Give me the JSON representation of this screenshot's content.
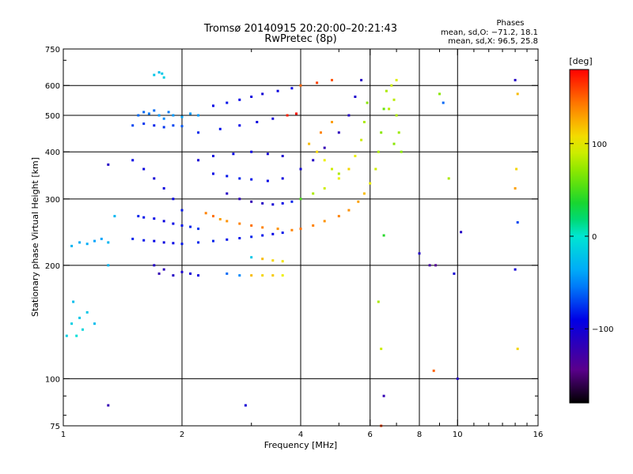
{
  "chart_data": {
    "type": "scatter",
    "title": "Tromsø 20140915 20:20:00–20:21:43",
    "subtitle": "RwPretec (8p)",
    "stats": {
      "title": "Phases",
      "line_o": "mean, sd,O: −71.2, 18.1",
      "line_x": "mean, sd,X:  96.5, 25.8"
    },
    "xlabel": "Frequency [MHz]",
    "ylabel": "Stationary phase Virtual Height [km]",
    "x_scale": "log",
    "y_scale": "log",
    "xlim": [
      1,
      16
    ],
    "ylim": [
      75,
      750
    ],
    "x_ticks": [
      1,
      2,
      4,
      6,
      8,
      10,
      16
    ],
    "x_tick_labels": [
      "1",
      "2",
      "4",
      "6",
      "8",
      "10",
      "16"
    ],
    "y_ticks": [
      75,
      100,
      200,
      300,
      400,
      500,
      600,
      750
    ],
    "y_tick_labels": [
      "75",
      "100",
      "200",
      "300",
      "400",
      "500",
      "600",
      "750"
    ],
    "x_gridlines": [
      2,
      4,
      6,
      8,
      10
    ],
    "y_gridlines": [
      100,
      200,
      300,
      400,
      500,
      600
    ],
    "grid": true,
    "colorbar": {
      "label": "[deg]",
      "min": -180,
      "max": 180,
      "ticks": [
        100,
        0,
        -100
      ],
      "tick_labels": [
        "100",
        "0",
        "−100"
      ],
      "colormap": "rainbow"
    },
    "series": [
      {
        "points": [
          [
            1.05,
            140,
            -15
          ],
          [
            1.08,
            130,
            -5
          ],
          [
            1.1,
            145,
            -20
          ],
          [
            1.12,
            135,
            -10
          ],
          [
            1.15,
            150,
            -20
          ],
          [
            1.2,
            140,
            -25
          ],
          [
            1.02,
            130,
            -15
          ],
          [
            1.06,
            160,
            -25
          ],
          [
            1.05,
            225,
            -30
          ],
          [
            1.1,
            230,
            -35
          ],
          [
            1.15,
            228,
            -35
          ],
          [
            1.2,
            232,
            -40
          ],
          [
            1.25,
            235,
            -40
          ],
          [
            1.3,
            230,
            -30
          ],
          [
            1.3,
            85,
            -120
          ],
          [
            1.3,
            370,
            -110
          ],
          [
            1.35,
            270,
            -30
          ],
          [
            1.3,
            200,
            -30
          ],
          [
            1.7,
            640,
            -20
          ],
          [
            1.75,
            650,
            -25
          ],
          [
            1.8,
            630,
            -15
          ],
          [
            1.78,
            645,
            -20
          ],
          [
            1.55,
            500,
            -60
          ],
          [
            1.6,
            510,
            -60
          ],
          [
            1.65,
            505,
            -55
          ],
          [
            1.7,
            515,
            -60
          ],
          [
            1.75,
            500,
            -45
          ],
          [
            1.8,
            490,
            -50
          ],
          [
            1.85,
            510,
            -55
          ],
          [
            1.9,
            500,
            -45
          ],
          [
            2.0,
            495,
            -40
          ],
          [
            2.1,
            505,
            -45
          ],
          [
            2.2,
            500,
            -45
          ],
          [
            1.5,
            470,
            -70
          ],
          [
            1.6,
            475,
            -75
          ],
          [
            1.7,
            470,
            -80
          ],
          [
            1.8,
            465,
            -75
          ],
          [
            1.9,
            470,
            -70
          ],
          [
            2.0,
            468,
            -65
          ],
          [
            1.5,
            380,
            -90
          ],
          [
            1.6,
            360,
            -95
          ],
          [
            1.7,
            340,
            -100
          ],
          [
            1.8,
            320,
            -95
          ],
          [
            1.9,
            300,
            -90
          ],
          [
            2.0,
            280,
            -85
          ],
          [
            1.55,
            270,
            -80
          ],
          [
            1.6,
            268,
            -85
          ],
          [
            1.7,
            266,
            -90
          ],
          [
            1.8,
            262,
            -95
          ],
          [
            1.9,
            258,
            -90
          ],
          [
            2.0,
            255,
            -85
          ],
          [
            2.1,
            253,
            -80
          ],
          [
            2.2,
            250,
            -75
          ],
          [
            1.5,
            235,
            -80
          ],
          [
            1.6,
            233,
            -85
          ],
          [
            1.7,
            232,
            -90
          ],
          [
            1.8,
            230,
            -95
          ],
          [
            1.9,
            229,
            -90
          ],
          [
            2.0,
            228,
            -85
          ],
          [
            2.2,
            230,
            -80
          ],
          [
            2.4,
            232,
            -80
          ],
          [
            2.6,
            234,
            -85
          ],
          [
            2.8,
            236,
            -85
          ],
          [
            3.0,
            238,
            -80
          ],
          [
            3.2,
            240,
            -85
          ],
          [
            3.4,
            242,
            -90
          ],
          [
            3.6,
            244,
            -85
          ],
          [
            1.7,
            200,
            -110
          ],
          [
            1.75,
            190,
            -120
          ],
          [
            1.8,
            195,
            -115
          ],
          [
            1.9,
            188,
            -110
          ],
          [
            2.0,
            192,
            -105
          ],
          [
            2.1,
            190,
            -100
          ],
          [
            2.2,
            188,
            -95
          ],
          [
            2.6,
            190,
            -60
          ],
          [
            2.8,
            188,
            -50
          ],
          [
            3.0,
            188,
            120
          ],
          [
            3.2,
            188,
            110
          ],
          [
            3.4,
            188,
            115
          ],
          [
            3.6,
            188,
            100
          ],
          [
            3.0,
            210,
            -20
          ],
          [
            3.2,
            208,
            120
          ],
          [
            3.4,
            206,
            110
          ],
          [
            3.6,
            205,
            105
          ],
          [
            2.3,
            275,
            140
          ],
          [
            2.4,
            270,
            145
          ],
          [
            2.5,
            265,
            130
          ],
          [
            2.6,
            262,
            135
          ],
          [
            2.8,
            258,
            140
          ],
          [
            3.0,
            255,
            145
          ],
          [
            3.2,
            252,
            140
          ],
          [
            3.5,
            250,
            135
          ],
          [
            3.8,
            248,
            140
          ],
          [
            4.0,
            250,
            145
          ],
          [
            4.3,
            255,
            140
          ],
          [
            4.6,
            262,
            135
          ],
          [
            5.0,
            270,
            140
          ],
          [
            5.3,
            280,
            135
          ],
          [
            5.6,
            295,
            130
          ],
          [
            5.8,
            310,
            120
          ],
          [
            6.0,
            330,
            100
          ],
          [
            6.2,
            360,
            90
          ],
          [
            6.3,
            400,
            80
          ],
          [
            6.4,
            450,
            70
          ],
          [
            6.5,
            520,
            60
          ],
          [
            6.6,
            580,
            80
          ],
          [
            2.6,
            310,
            -110
          ],
          [
            2.8,
            300,
            -115
          ],
          [
            3.0,
            295,
            -120
          ],
          [
            3.2,
            292,
            -110
          ],
          [
            3.4,
            290,
            -100
          ],
          [
            3.6,
            292,
            -90
          ],
          [
            3.8,
            295,
            -80
          ],
          [
            4.0,
            300,
            50
          ],
          [
            4.3,
            310,
            80
          ],
          [
            4.6,
            320,
            90
          ],
          [
            5.0,
            340,
            100
          ],
          [
            5.3,
            360,
            110
          ],
          [
            5.5,
            390,
            100
          ],
          [
            5.7,
            430,
            90
          ],
          [
            5.8,
            480,
            80
          ],
          [
            5.9,
            540,
            70
          ],
          [
            2.4,
            350,
            -90
          ],
          [
            2.6,
            345,
            -85
          ],
          [
            2.8,
            340,
            -80
          ],
          [
            3.0,
            338,
            -85
          ],
          [
            3.3,
            335,
            -90
          ],
          [
            3.6,
            340,
            -95
          ],
          [
            4.0,
            360,
            -100
          ],
          [
            4.3,
            380,
            -110
          ],
          [
            4.6,
            410,
            -120
          ],
          [
            5.0,
            450,
            -115
          ],
          [
            5.3,
            500,
            -110
          ],
          [
            5.5,
            560,
            -105
          ],
          [
            5.7,
            620,
            -110
          ],
          [
            2.2,
            380,
            -100
          ],
          [
            2.4,
            390,
            -95
          ],
          [
            2.7,
            395,
            -90
          ],
          [
            3.0,
            400,
            -95
          ],
          [
            3.3,
            395,
            -100
          ],
          [
            3.6,
            390,
            -105
          ],
          [
            2.4,
            530,
            -90
          ],
          [
            2.6,
            540,
            -85
          ],
          [
            2.8,
            550,
            -90
          ],
          [
            3.0,
            560,
            -95
          ],
          [
            3.2,
            570,
            -100
          ],
          [
            3.5,
            580,
            -95
          ],
          [
            3.8,
            590,
            -90
          ],
          [
            4.0,
            600,
            150
          ],
          [
            4.4,
            610,
            160
          ],
          [
            4.8,
            620,
            155
          ],
          [
            2.2,
            450,
            -80
          ],
          [
            2.5,
            460,
            -85
          ],
          [
            2.8,
            470,
            -90
          ],
          [
            3.1,
            480,
            -95
          ],
          [
            3.4,
            490,
            -100
          ],
          [
            3.7,
            500,
            170
          ],
          [
            3.9,
            505,
            175
          ],
          [
            4.2,
            420,
            120
          ],
          [
            4.4,
            400,
            110
          ],
          [
            4.6,
            380,
            100
          ],
          [
            4.8,
            360,
            90
          ],
          [
            5.0,
            350,
            80
          ],
          [
            4.5,
            450,
            140
          ],
          [
            4.8,
            480,
            130
          ],
          [
            6.8,
            600,
            90
          ],
          [
            6.9,
            550,
            85
          ],
          [
            7.0,
            500,
            80
          ],
          [
            7.1,
            450,
            75
          ],
          [
            7.2,
            400,
            70
          ],
          [
            7.0,
            620,
            95
          ],
          [
            6.7,
            520,
            85
          ],
          [
            6.9,
            420,
            70
          ],
          [
            6.3,
            160,
            80
          ],
          [
            6.4,
            120,
            90
          ],
          [
            6.5,
            90,
            -120
          ],
          [
            6.4,
            75,
            160
          ],
          [
            6.5,
            240,
            40
          ],
          [
            8.5,
            200,
            -130
          ],
          [
            8.7,
            105,
            150
          ],
          [
            9.0,
            570,
            70
          ],
          [
            9.2,
            540,
            -60
          ],
          [
            9.5,
            340,
            80
          ],
          [
            9.8,
            190,
            -100
          ],
          [
            10.2,
            245,
            -110
          ],
          [
            10.0,
            100,
            -110
          ],
          [
            14.0,
            620,
            -110
          ],
          [
            14.2,
            570,
            120
          ],
          [
            14.1,
            360,
            110
          ],
          [
            14.0,
            320,
            130
          ],
          [
            14.2,
            260,
            -70
          ],
          [
            14.0,
            195,
            -100
          ],
          [
            14.2,
            120,
            110
          ],
          [
            8.0,
            215,
            -110
          ],
          [
            8.8,
            200,
            -140
          ],
          [
            2.9,
            85,
            -100
          ]
        ]
      }
    ]
  }
}
